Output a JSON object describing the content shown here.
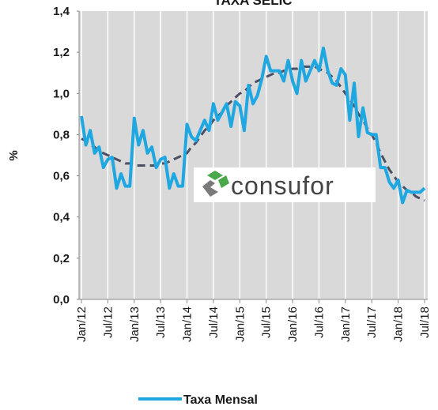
{
  "chart_data": {
    "type": "line",
    "title": "TAXA SELIC",
    "y_label": "%",
    "watermark": "consufor",
    "categories": [
      "Jan/12",
      null,
      null,
      null,
      null,
      null,
      "Jul/12",
      null,
      null,
      null,
      null,
      null,
      "Jan/13",
      null,
      null,
      null,
      null,
      null,
      "Jul/13",
      null,
      null,
      null,
      null,
      null,
      "Jan/14",
      null,
      null,
      null,
      null,
      null,
      "Jul/14",
      null,
      null,
      null,
      null,
      null,
      "Jan/15",
      null,
      null,
      null,
      null,
      null,
      "Jul/15",
      null,
      null,
      null,
      null,
      null,
      "Jan/16",
      null,
      null,
      null,
      null,
      null,
      "Jul/16",
      null,
      null,
      null,
      null,
      null,
      "Jan/17",
      null,
      null,
      null,
      null,
      null,
      "Jul/17",
      null,
      null,
      null,
      null,
      null,
      "Jan/18",
      null,
      null,
      null,
      null,
      null,
      "Jul/18"
    ],
    "series": [
      {
        "name": "Taxa Mensal",
        "color": "#1ea7e1",
        "values": [
          0.89,
          0.75,
          0.82,
          0.71,
          0.74,
          0.64,
          0.68,
          0.69,
          0.54,
          0.61,
          0.55,
          0.55,
          0.88,
          0.75,
          0.82,
          0.71,
          0.74,
          0.64,
          0.68,
          0.69,
          0.54,
          0.61,
          0.55,
          0.55,
          0.85,
          0.79,
          0.77,
          0.82,
          0.87,
          0.82,
          0.95,
          0.87,
          0.91,
          0.95,
          0.84,
          0.96,
          0.94,
          0.82,
          1.04,
          0.95,
          0.99,
          1.07,
          1.18,
          1.11,
          1.11,
          1.11,
          1.06,
          1.16,
          1.06,
          1.0,
          1.16,
          1.06,
          1.11,
          1.16,
          1.11,
          1.22,
          1.11,
          1.05,
          1.04,
          1.12,
          1.09,
          0.87,
          1.05,
          0.79,
          0.93,
          0.81,
          0.8,
          0.8,
          0.64,
          0.64,
          0.57,
          0.54,
          0.58,
          0.47,
          0.53,
          0.52,
          0.52,
          0.52,
          0.54
        ]
      },
      {
        "color": "#4a4f63",
        "dashed": true,
        "values": [
          0.78,
          0.77,
          0.75,
          0.74,
          0.72,
          0.71,
          0.7,
          0.69,
          0.68,
          0.67,
          0.66,
          0.66,
          0.65,
          0.65,
          0.65,
          0.65,
          0.65,
          0.65,
          0.66,
          0.66,
          0.67,
          0.68,
          0.69,
          0.7,
          0.71,
          0.74,
          0.76,
          0.79,
          0.82,
          0.84,
          0.87,
          0.89,
          0.91,
          0.94,
          0.96,
          0.98,
          1.0,
          1.01,
          1.03,
          1.05,
          1.06,
          1.07,
          1.08,
          1.09,
          1.1,
          1.1,
          1.11,
          1.11,
          1.12,
          1.12,
          1.13,
          1.13,
          1.13,
          1.13,
          1.12,
          1.11,
          1.1,
          1.08,
          1.06,
          1.03,
          1.0,
          0.97,
          0.94,
          0.9,
          0.87,
          0.83,
          0.8,
          0.76,
          0.71,
          0.67,
          0.63,
          0.6,
          0.57,
          0.55,
          0.53,
          0.52,
          0.5,
          0.49,
          0.48
        ]
      }
    ],
    "ylim": [
      0,
      1.4
    ],
    "yticks": [
      {
        "value": 0,
        "label": "0,0"
      },
      {
        "value": 0.2,
        "label": "0,2"
      },
      {
        "value": 0.4,
        "label": "0,4"
      },
      {
        "value": 0.6,
        "label": "0,6"
      },
      {
        "value": 0.8,
        "label": "0,8"
      },
      {
        "value": 1.0,
        "label": "1,0"
      },
      {
        "value": 1.2,
        "label": "1,2"
      },
      {
        "value": 1.4,
        "label": "1,4"
      }
    ],
    "grid": true,
    "legend": "bottom"
  }
}
